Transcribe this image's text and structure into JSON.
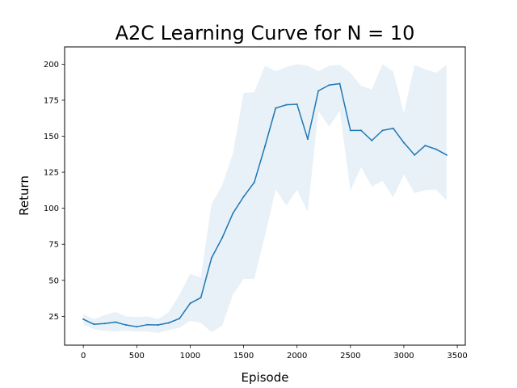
{
  "chart_data": {
    "type": "line",
    "title": "A2C Learning Curve for N = 10",
    "xlabel": "Episode",
    "ylabel": "Return",
    "xlim": [
      -175,
      3575
    ],
    "ylim": [
      5,
      212
    ],
    "xticks": [
      0,
      500,
      1000,
      1500,
      2000,
      2500,
      3000,
      3500
    ],
    "yticks": [
      25,
      50,
      75,
      100,
      125,
      150,
      175,
      200
    ],
    "grid": false,
    "legend": "none",
    "line_color": "#1f77b4",
    "band_color": "#1f77b4",
    "band_opacity": 0.1,
    "series": [
      {
        "x": [
          0,
          100,
          200,
          300,
          400,
          500,
          600,
          700,
          800,
          900,
          1000,
          1100,
          1200,
          1300,
          1400,
          1500,
          1600,
          1700,
          1800,
          1900,
          2000,
          2100,
          2200,
          2300,
          2400,
          2500,
          2600,
          2700,
          2800,
          2900,
          3000,
          3100,
          3200,
          3300,
          3400
        ],
        "mean": [
          23,
          19.5,
          20,
          21,
          19,
          17.8,
          19.2,
          19,
          20.5,
          23.5,
          34,
          38,
          65.5,
          79.5,
          96.5,
          108,
          118,
          143,
          169.5,
          171.8,
          172.2,
          148,
          181.5,
          185.5,
          186.5,
          154,
          154,
          147,
          154,
          155.5,
          145.5,
          137,
          143.5,
          141,
          137
        ],
        "upper": [
          26.5,
          23,
          26,
          28,
          25,
          24.5,
          25,
          23,
          28,
          40,
          54.5,
          52,
          103,
          116,
          138,
          180,
          180.5,
          199,
          195,
          198,
          200,
          199,
          195,
          199,
          199.5,
          194,
          185,
          182.5,
          200,
          195,
          166,
          199.5,
          196.5,
          194,
          199.5
        ],
        "lower": [
          19.5,
          16,
          15,
          14.5,
          15,
          14.5,
          14.5,
          13.5,
          15.5,
          17,
          22,
          20.5,
          14,
          18.5,
          40,
          51,
          51,
          81,
          113,
          102,
          113,
          97.5,
          167.5,
          156.5,
          167.5,
          112.5,
          128.5,
          115,
          119,
          107.5,
          123.5,
          110.5,
          112.5,
          113,
          105.5
        ]
      }
    ]
  }
}
